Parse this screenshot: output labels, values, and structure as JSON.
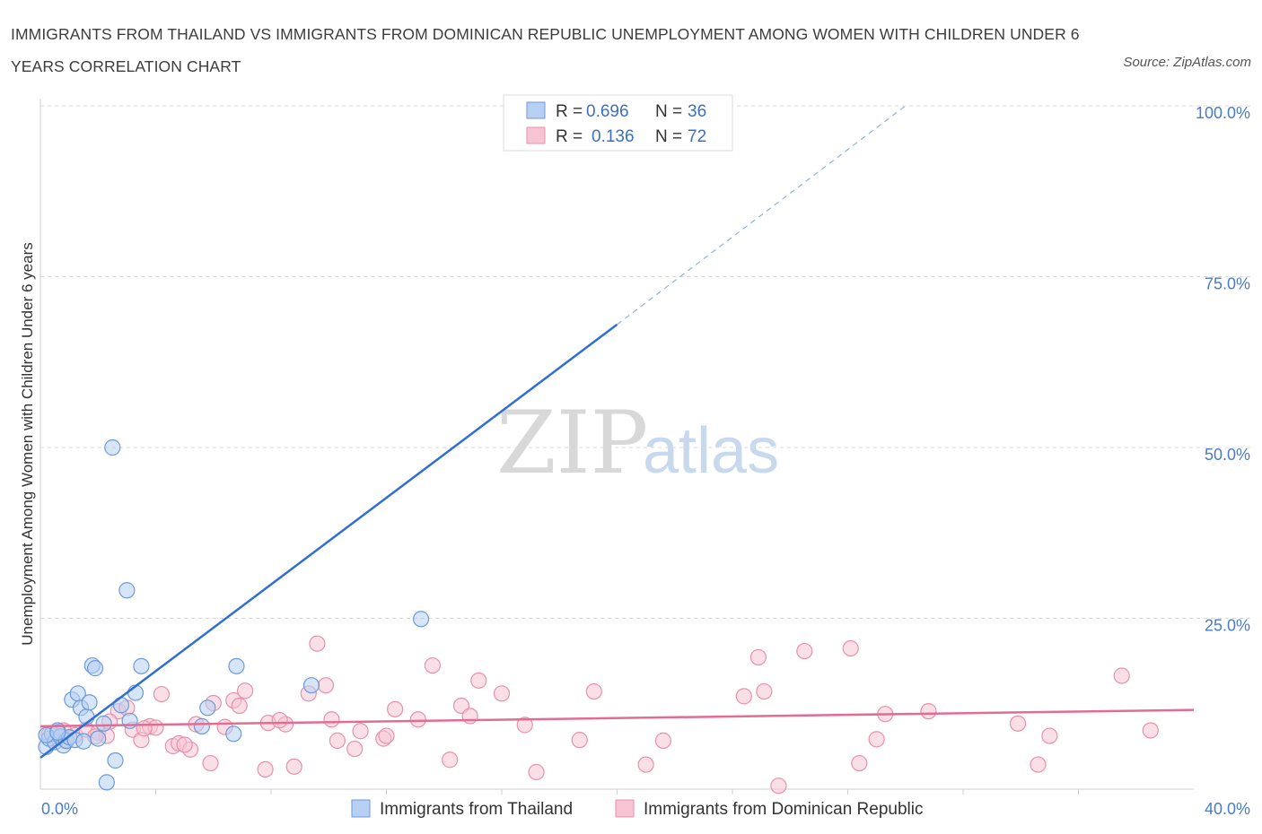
{
  "title": "IMMIGRANTS FROM THAILAND VS IMMIGRANTS FROM DOMINICAN REPUBLIC UNEMPLOYMENT AMONG WOMEN WITH CHILDREN UNDER 6 YEARS CORRELATION CHART",
  "source": "Source: ZipAtlas.com",
  "watermark": {
    "zip": "ZIP",
    "atlas": "atlas"
  },
  "legend": {
    "r_label": "R =",
    "n_label": "N =",
    "thailand": {
      "r": "0.696",
      "n": "36"
    },
    "dominican": {
      "r": "0.136",
      "n": "72"
    }
  },
  "colors": {
    "thailand_fill": "#b7cff2",
    "thailand_stroke": "#6d9ad9",
    "thailand_line": "#2f6fd0",
    "dominican_fill": "#f6c4d3",
    "dominican_stroke": "#e891ad",
    "dominican_line": "#e36c93",
    "tick_label": "#4a7bc8"
  },
  "chart_data": {
    "type": "scatter",
    "xlabel": "",
    "ylabel": "Unemployment Among Women with Children Under 6 years",
    "xlim": [
      0,
      40
    ],
    "ylim": [
      0,
      100
    ],
    "x_tick_labels": [
      "0.0%",
      "40.0%"
    ],
    "y_ticks": [
      25,
      50,
      75,
      100
    ],
    "y_tick_labels": [
      "25.0%",
      "50.0%",
      "75.0%",
      "100.0%"
    ],
    "grid": "horizontal dashed",
    "legend_position": "top-center",
    "series": [
      {
        "name": "Immigrants from Thailand",
        "points": [
          [
            0.2,
            6.2
          ],
          [
            0.3,
            7.4
          ],
          [
            0.4,
            8.1
          ],
          [
            0.5,
            6.9
          ],
          [
            0.6,
            8.6
          ],
          [
            0.7,
            7.7
          ],
          [
            0.8,
            6.4
          ],
          [
            0.9,
            7.1
          ],
          [
            1.0,
            7.6
          ],
          [
            1.1,
            13.1
          ],
          [
            1.2,
            7.2
          ],
          [
            1.3,
            14.0
          ],
          [
            1.4,
            11.9
          ],
          [
            1.5,
            7.0
          ],
          [
            1.6,
            10.6
          ],
          [
            1.7,
            12.7
          ],
          [
            1.8,
            18.1
          ],
          [
            1.9,
            17.7
          ],
          [
            2.0,
            7.4
          ],
          [
            2.2,
            9.6
          ],
          [
            2.3,
            1.0
          ],
          [
            2.5,
            50.0
          ],
          [
            2.6,
            4.2
          ],
          [
            2.8,
            12.3
          ],
          [
            3.0,
            29.1
          ],
          [
            3.1,
            10.0
          ],
          [
            3.3,
            14.1
          ],
          [
            3.5,
            18.0
          ],
          [
            5.6,
            9.2
          ],
          [
            5.8,
            11.9
          ],
          [
            6.7,
            8.1
          ],
          [
            6.8,
            18.0
          ],
          [
            9.4,
            15.2
          ],
          [
            13.2,
            24.9
          ],
          [
            0.2,
            7.9
          ],
          [
            0.6,
            8.3
          ]
        ]
      },
      {
        "name": "Immigrants from Dominican Republic",
        "points": [
          [
            0.3,
            8.0
          ],
          [
            0.5,
            7.3
          ],
          [
            0.8,
            8.6
          ],
          [
            1.2,
            7.9
          ],
          [
            1.6,
            8.7
          ],
          [
            2.0,
            8.3
          ],
          [
            2.3,
            7.8
          ],
          [
            2.7,
            11.4
          ],
          [
            3.0,
            11.9
          ],
          [
            3.2,
            8.7
          ],
          [
            3.5,
            7.2
          ],
          [
            3.8,
            9.2
          ],
          [
            4.0,
            9.0
          ],
          [
            4.2,
            13.9
          ],
          [
            4.6,
            6.3
          ],
          [
            4.8,
            6.7
          ],
          [
            5.2,
            5.8
          ],
          [
            5.4,
            9.5
          ],
          [
            5.9,
            3.8
          ],
          [
            6.0,
            12.6
          ],
          [
            6.4,
            9.1
          ],
          [
            6.7,
            13.0
          ],
          [
            6.9,
            12.2
          ],
          [
            7.1,
            14.4
          ],
          [
            7.8,
            2.9
          ],
          [
            7.9,
            9.7
          ],
          [
            8.5,
            9.5
          ],
          [
            8.8,
            3.3
          ],
          [
            9.3,
            14.0
          ],
          [
            9.6,
            21.3
          ],
          [
            9.9,
            15.2
          ],
          [
            10.1,
            10.2
          ],
          [
            10.3,
            7.1
          ],
          [
            10.9,
            5.9
          ],
          [
            11.1,
            8.5
          ],
          [
            11.9,
            7.4
          ],
          [
            12.0,
            7.8
          ],
          [
            12.3,
            11.7
          ],
          [
            13.1,
            10.2
          ],
          [
            13.6,
            18.1
          ],
          [
            14.2,
            4.3
          ],
          [
            14.6,
            12.2
          ],
          [
            14.9,
            10.7
          ],
          [
            15.2,
            15.9
          ],
          [
            16.0,
            14.0
          ],
          [
            16.8,
            9.4
          ],
          [
            17.2,
            2.5
          ],
          [
            18.7,
            7.2
          ],
          [
            19.2,
            14.3
          ],
          [
            21.0,
            3.6
          ],
          [
            21.6,
            7.1
          ],
          [
            24.4,
            13.6
          ],
          [
            24.9,
            19.3
          ],
          [
            25.1,
            14.3
          ],
          [
            25.6,
            0.5
          ],
          [
            26.5,
            20.2
          ],
          [
            28.1,
            20.6
          ],
          [
            28.4,
            3.8
          ],
          [
            29.0,
            7.3
          ],
          [
            29.3,
            11.0
          ],
          [
            30.8,
            11.4
          ],
          [
            33.9,
            9.6
          ],
          [
            34.6,
            3.6
          ],
          [
            35.0,
            7.8
          ],
          [
            37.5,
            16.6
          ],
          [
            38.5,
            8.6
          ],
          [
            0.9,
            7.0
          ],
          [
            1.9,
            7.7
          ],
          [
            2.4,
            9.9
          ],
          [
            3.6,
            8.9
          ],
          [
            5.0,
            6.5
          ],
          [
            8.3,
            10.1
          ]
        ]
      }
    ],
    "trendlines": [
      {
        "series": "Immigrants from Thailand",
        "x_start": 0,
        "y_start": 4.6,
        "x_end": 20,
        "y_end": 68,
        "dashed_to_x": 30,
        "dashed_to_y": 100
      },
      {
        "series": "Immigrants from Dominican Republic",
        "x_start": 0,
        "y_start": 9.2,
        "x_end": 40,
        "y_end": 11.6
      }
    ]
  }
}
